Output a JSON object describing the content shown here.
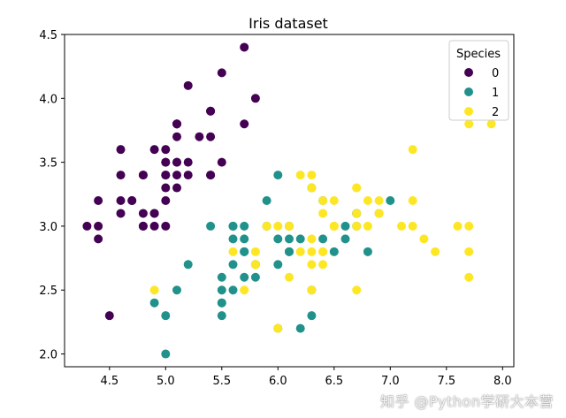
{
  "chart_data": {
    "type": "scatter",
    "title": "Iris dataset",
    "xlabel": "",
    "ylabel": "",
    "xlim": [
      4.1,
      8.1
    ],
    "ylim": [
      1.9,
      4.5
    ],
    "xticks": [
      4.5,
      5.0,
      5.5,
      6.0,
      6.5,
      7.0,
      7.5,
      8.0
    ],
    "xtick_labels": [
      "4.5",
      "5.0",
      "5.5",
      "6.0",
      "6.5",
      "7.0",
      "7.5",
      "8.0"
    ],
    "yticks": [
      2.0,
      2.5,
      3.0,
      3.5,
      4.0,
      4.5
    ],
    "ytick_labels": [
      "2.0",
      "2.5",
      "3.0",
      "3.5",
      "4.0",
      "4.5"
    ],
    "grid": false,
    "legend": {
      "title": "Species",
      "position": "top-right"
    },
    "series": [
      {
        "name": "0",
        "color": "#440154",
        "points": [
          [
            5.1,
            3.5
          ],
          [
            4.9,
            3.0
          ],
          [
            4.7,
            3.2
          ],
          [
            4.6,
            3.1
          ],
          [
            5.0,
            3.6
          ],
          [
            5.4,
            3.9
          ],
          [
            4.6,
            3.4
          ],
          [
            5.0,
            3.4
          ],
          [
            4.4,
            2.9
          ],
          [
            4.9,
            3.1
          ],
          [
            5.4,
            3.7
          ],
          [
            4.8,
            3.4
          ],
          [
            4.8,
            3.0
          ],
          [
            4.3,
            3.0
          ],
          [
            5.8,
            4.0
          ],
          [
            5.7,
            4.4
          ],
          [
            5.4,
            3.9
          ],
          [
            5.1,
            3.5
          ],
          [
            5.7,
            3.8
          ],
          [
            5.1,
            3.8
          ],
          [
            5.4,
            3.4
          ],
          [
            5.1,
            3.7
          ],
          [
            4.6,
            3.6
          ],
          [
            5.1,
            3.3
          ],
          [
            4.8,
            3.4
          ],
          [
            5.0,
            3.0
          ],
          [
            5.0,
            3.4
          ],
          [
            5.2,
            3.5
          ],
          [
            5.2,
            3.4
          ],
          [
            4.7,
            3.2
          ],
          [
            4.8,
            3.1
          ],
          [
            5.4,
            3.4
          ],
          [
            5.2,
            4.1
          ],
          [
            5.5,
            4.2
          ],
          [
            4.9,
            3.1
          ],
          [
            5.0,
            3.2
          ],
          [
            5.5,
            3.5
          ],
          [
            4.9,
            3.6
          ],
          [
            4.4,
            3.0
          ],
          [
            5.1,
            3.4
          ],
          [
            5.0,
            3.5
          ],
          [
            4.5,
            2.3
          ],
          [
            4.4,
            3.2
          ],
          [
            5.0,
            3.5
          ],
          [
            5.1,
            3.8
          ],
          [
            4.8,
            3.0
          ],
          [
            5.1,
            3.8
          ],
          [
            4.6,
            3.2
          ],
          [
            5.3,
            3.7
          ],
          [
            5.0,
            3.3
          ]
        ]
      },
      {
        "name": "1",
        "color": "#21918c",
        "points": [
          [
            7.0,
            3.2
          ],
          [
            6.4,
            3.2
          ],
          [
            6.9,
            3.1
          ],
          [
            5.5,
            2.3
          ],
          [
            6.5,
            2.8
          ],
          [
            5.7,
            2.8
          ],
          [
            6.3,
            3.3
          ],
          [
            4.9,
            2.4
          ],
          [
            6.6,
            2.9
          ],
          [
            5.2,
            2.7
          ],
          [
            5.0,
            2.0
          ],
          [
            5.9,
            3.0
          ],
          [
            6.0,
            2.2
          ],
          [
            6.1,
            2.9
          ],
          [
            5.6,
            2.9
          ],
          [
            6.7,
            3.1
          ],
          [
            5.6,
            3.0
          ],
          [
            5.8,
            2.7
          ],
          [
            6.2,
            2.2
          ],
          [
            5.6,
            2.5
          ],
          [
            5.9,
            3.2
          ],
          [
            6.1,
            2.8
          ],
          [
            6.3,
            2.5
          ],
          [
            6.1,
            2.8
          ],
          [
            6.4,
            2.9
          ],
          [
            6.6,
            3.0
          ],
          [
            6.8,
            2.8
          ],
          [
            6.7,
            3.0
          ],
          [
            6.0,
            2.9
          ],
          [
            5.7,
            2.6
          ],
          [
            5.5,
            2.4
          ],
          [
            5.5,
            2.4
          ],
          [
            5.8,
            2.7
          ],
          [
            6.0,
            2.7
          ],
          [
            5.4,
            3.0
          ],
          [
            6.0,
            3.4
          ],
          [
            6.7,
            3.1
          ],
          [
            6.3,
            2.3
          ],
          [
            5.6,
            3.0
          ],
          [
            5.5,
            2.5
          ],
          [
            5.5,
            2.6
          ],
          [
            6.1,
            3.0
          ],
          [
            5.8,
            2.6
          ],
          [
            5.0,
            2.3
          ],
          [
            5.6,
            2.7
          ],
          [
            5.7,
            3.0
          ],
          [
            5.7,
            2.9
          ],
          [
            6.2,
            2.9
          ],
          [
            5.1,
            2.5
          ],
          [
            5.7,
            2.8
          ]
        ]
      },
      {
        "name": "2",
        "color": "#fde725",
        "points": [
          [
            6.3,
            3.3
          ],
          [
            5.8,
            2.7
          ],
          [
            7.1,
            3.0
          ],
          [
            6.3,
            2.9
          ],
          [
            6.5,
            3.0
          ],
          [
            7.6,
            3.0
          ],
          [
            4.9,
            2.5
          ],
          [
            7.3,
            2.9
          ],
          [
            6.7,
            2.5
          ],
          [
            7.2,
            3.6
          ],
          [
            6.5,
            3.2
          ],
          [
            6.4,
            2.7
          ],
          [
            6.8,
            3.0
          ],
          [
            5.7,
            2.5
          ],
          [
            5.8,
            2.8
          ],
          [
            6.4,
            3.2
          ],
          [
            6.5,
            3.0
          ],
          [
            7.7,
            3.8
          ],
          [
            7.7,
            2.6
          ],
          [
            6.0,
            2.2
          ],
          [
            6.9,
            3.2
          ],
          [
            5.6,
            2.8
          ],
          [
            7.7,
            2.8
          ],
          [
            6.3,
            2.7
          ],
          [
            6.7,
            3.3
          ],
          [
            7.2,
            3.2
          ],
          [
            6.2,
            2.8
          ],
          [
            6.1,
            3.0
          ],
          [
            6.4,
            2.8
          ],
          [
            7.2,
            3.0
          ],
          [
            7.4,
            2.8
          ],
          [
            7.9,
            3.8
          ],
          [
            6.4,
            2.8
          ],
          [
            6.3,
            2.8
          ],
          [
            6.1,
            2.6
          ],
          [
            7.7,
            3.0
          ],
          [
            6.3,
            3.4
          ],
          [
            6.4,
            3.1
          ],
          [
            6.0,
            3.0
          ],
          [
            6.9,
            3.1
          ],
          [
            6.7,
            3.1
          ],
          [
            6.9,
            3.1
          ],
          [
            5.8,
            2.7
          ],
          [
            6.8,
            3.2
          ],
          [
            6.7,
            3.3
          ],
          [
            6.7,
            3.0
          ],
          [
            6.3,
            2.5
          ],
          [
            6.5,
            3.0
          ],
          [
            6.2,
            3.4
          ],
          [
            5.9,
            3.0
          ]
        ]
      }
    ]
  },
  "watermark": "知乎 @Python学研大本营"
}
